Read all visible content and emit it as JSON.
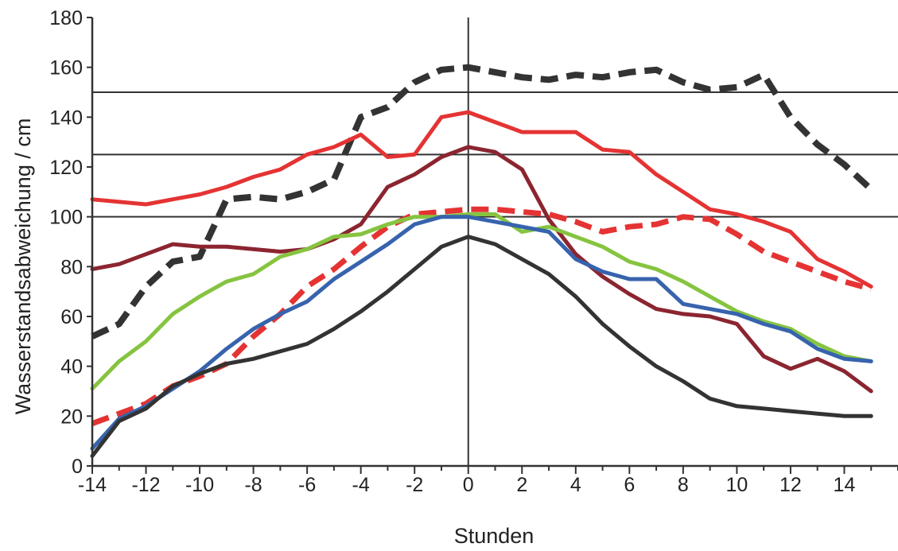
{
  "chart_data": {
    "type": "line",
    "title": "",
    "xlabel": "Stunden",
    "ylabel": "Wasserstandsabweichung / cm",
    "xlim": [
      -14,
      16
    ],
    "ylim": [
      0,
      180
    ],
    "x_ticks": [
      -14,
      -12,
      -10,
      -8,
      -6,
      -4,
      -2,
      0,
      2,
      4,
      6,
      8,
      10,
      12,
      14
    ],
    "x_tick_labels": [
      "-14",
      "-12",
      "-10",
      "-8",
      "-6",
      "-4",
      "-2",
      "0",
      "2",
      "4",
      "6",
      "8",
      "10",
      "12",
      "14"
    ],
    "y_ticks": [
      0,
      20,
      40,
      60,
      80,
      100,
      120,
      140,
      160,
      180
    ],
    "y_tick_labels": [
      "0",
      "20",
      "40",
      "60",
      "80",
      "100",
      "120",
      "140",
      "160",
      "180"
    ],
    "reference_lines_y": [
      100,
      125,
      150
    ],
    "reference_line_x": 0,
    "legend": "none",
    "x": [
      -14,
      -13,
      -12,
      -11,
      -10,
      -9,
      -8,
      -7,
      -6,
      -5,
      -4,
      -3,
      -2,
      -1,
      0,
      1,
      2,
      3,
      4,
      5,
      6,
      7,
      8,
      9,
      10,
      11,
      12,
      13,
      14,
      15
    ],
    "series": [
      {
        "color": "#333333",
        "dashed": true,
        "width": 8,
        "values": [
          52,
          57,
          72,
          82,
          84,
          107,
          108,
          107,
          110,
          115,
          140,
          144,
          154,
          159,
          160,
          158,
          156,
          155,
          157,
          156,
          158,
          159,
          154,
          151,
          152,
          157,
          140,
          129,
          121,
          111
        ]
      },
      {
        "color": "#e53333",
        "dashed": false,
        "width": 5,
        "values": [
          107,
          106,
          105,
          107,
          109,
          112,
          116,
          119,
          125,
          128,
          133,
          124,
          125,
          140,
          142,
          138,
          134,
          134,
          134,
          127,
          126,
          117,
          110,
          103,
          101,
          98,
          94,
          83,
          78,
          72
        ]
      },
      {
        "color": "#8b2530",
        "dashed": false,
        "width": 5,
        "values": [
          79,
          81,
          85,
          89,
          88,
          88,
          87,
          86,
          87,
          91,
          97,
          112,
          117,
          124,
          128,
          126,
          119,
          99,
          85,
          76,
          69,
          63,
          61,
          60,
          57,
          44,
          39,
          43,
          38,
          30
        ]
      },
      {
        "color": "#e53333",
        "dashed": true,
        "width": 7,
        "values": [
          17,
          21,
          25,
          32,
          36,
          41,
          52,
          61,
          72,
          79,
          88,
          96,
          101,
          102,
          103,
          103,
          102,
          101,
          98,
          94,
          96,
          97,
          100,
          99,
          93,
          86,
          82,
          78,
          74,
          71
        ]
      },
      {
        "color": "#86c440",
        "dashed": false,
        "width": 5,
        "values": [
          31,
          42,
          50,
          61,
          68,
          74,
          77,
          84,
          87,
          92,
          93,
          97,
          100,
          100,
          101,
          101,
          94,
          96,
          92,
          88,
          82,
          79,
          74,
          68,
          62,
          58,
          55,
          49,
          44,
          42
        ]
      },
      {
        "color": "#3763ad",
        "dashed": false,
        "width": 5,
        "values": [
          7,
          19,
          24,
          31,
          38,
          47,
          55,
          61,
          66,
          75,
          82,
          89,
          97,
          100,
          100,
          98,
          96,
          94,
          83,
          78,
          75,
          75,
          65,
          63,
          61,
          57,
          54,
          47,
          43,
          42
        ]
      },
      {
        "color": "#333333",
        "dashed": false,
        "width": 5,
        "values": [
          4,
          18,
          23,
          32,
          37,
          41,
          43,
          46,
          49,
          55,
          62,
          70,
          79,
          88,
          92,
          89,
          83,
          77,
          68,
          57,
          48,
          40,
          34,
          27,
          24,
          23,
          22,
          21,
          20,
          20
        ]
      }
    ]
  }
}
